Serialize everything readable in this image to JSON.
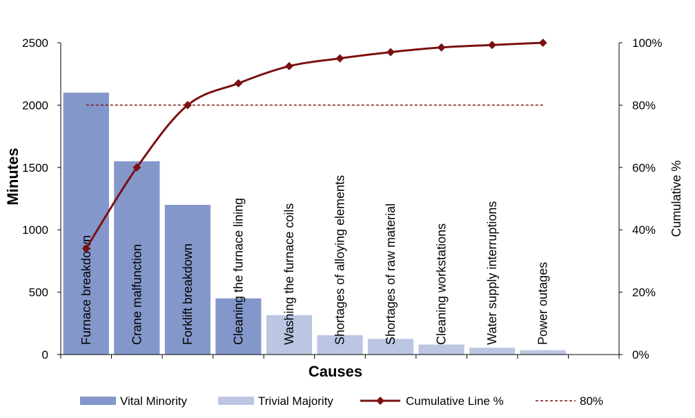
{
  "chart_data": {
    "type": "bar",
    "categories": [
      "Furnace breakdown",
      "Crane malfunction",
      "Forklift breakdown",
      "Cleaning the furnace lining",
      "Washing the furnace coils",
      "Shortages of alloying elements",
      "Shortages of raw material",
      "Cleaning workstations",
      "Water supply interruptions",
      "Power outages"
    ],
    "series": [
      {
        "name": "Vital Minority",
        "values": [
          2100,
          1550,
          1200,
          450,
          null,
          null,
          null,
          null,
          null,
          null
        ],
        "color": "#8497cb"
      },
      {
        "name": "Trivial Majority",
        "values": [
          null,
          null,
          null,
          null,
          315,
          155,
          125,
          80,
          55,
          35
        ],
        "color": "#bcc6e2"
      },
      {
        "name": "Cumulative Line %",
        "type": "line",
        "axis": "right",
        "values": [
          34,
          60,
          80,
          87,
          92.5,
          95,
          97,
          98.5,
          99.3,
          100
        ],
        "color": "#7b1010"
      },
      {
        "name": "80%",
        "type": "line",
        "axis": "right",
        "style": "dashed",
        "values": [
          80,
          80,
          80,
          80,
          80,
          80,
          80,
          80,
          80,
          80
        ],
        "color": "#7b1010"
      }
    ],
    "xlabel": "Causes",
    "ylabel": "Minutes",
    "y2label": "Cumulative %",
    "ylim": [
      0,
      2500
    ],
    "y2lim": [
      0,
      100
    ],
    "yticks": [
      0,
      500,
      1000,
      1500,
      2000,
      2500
    ],
    "y2ticks": [
      "0%",
      "20%",
      "40%",
      "60%",
      "80%",
      "100%"
    ],
    "grid": false,
    "legend_position": "bottom"
  }
}
